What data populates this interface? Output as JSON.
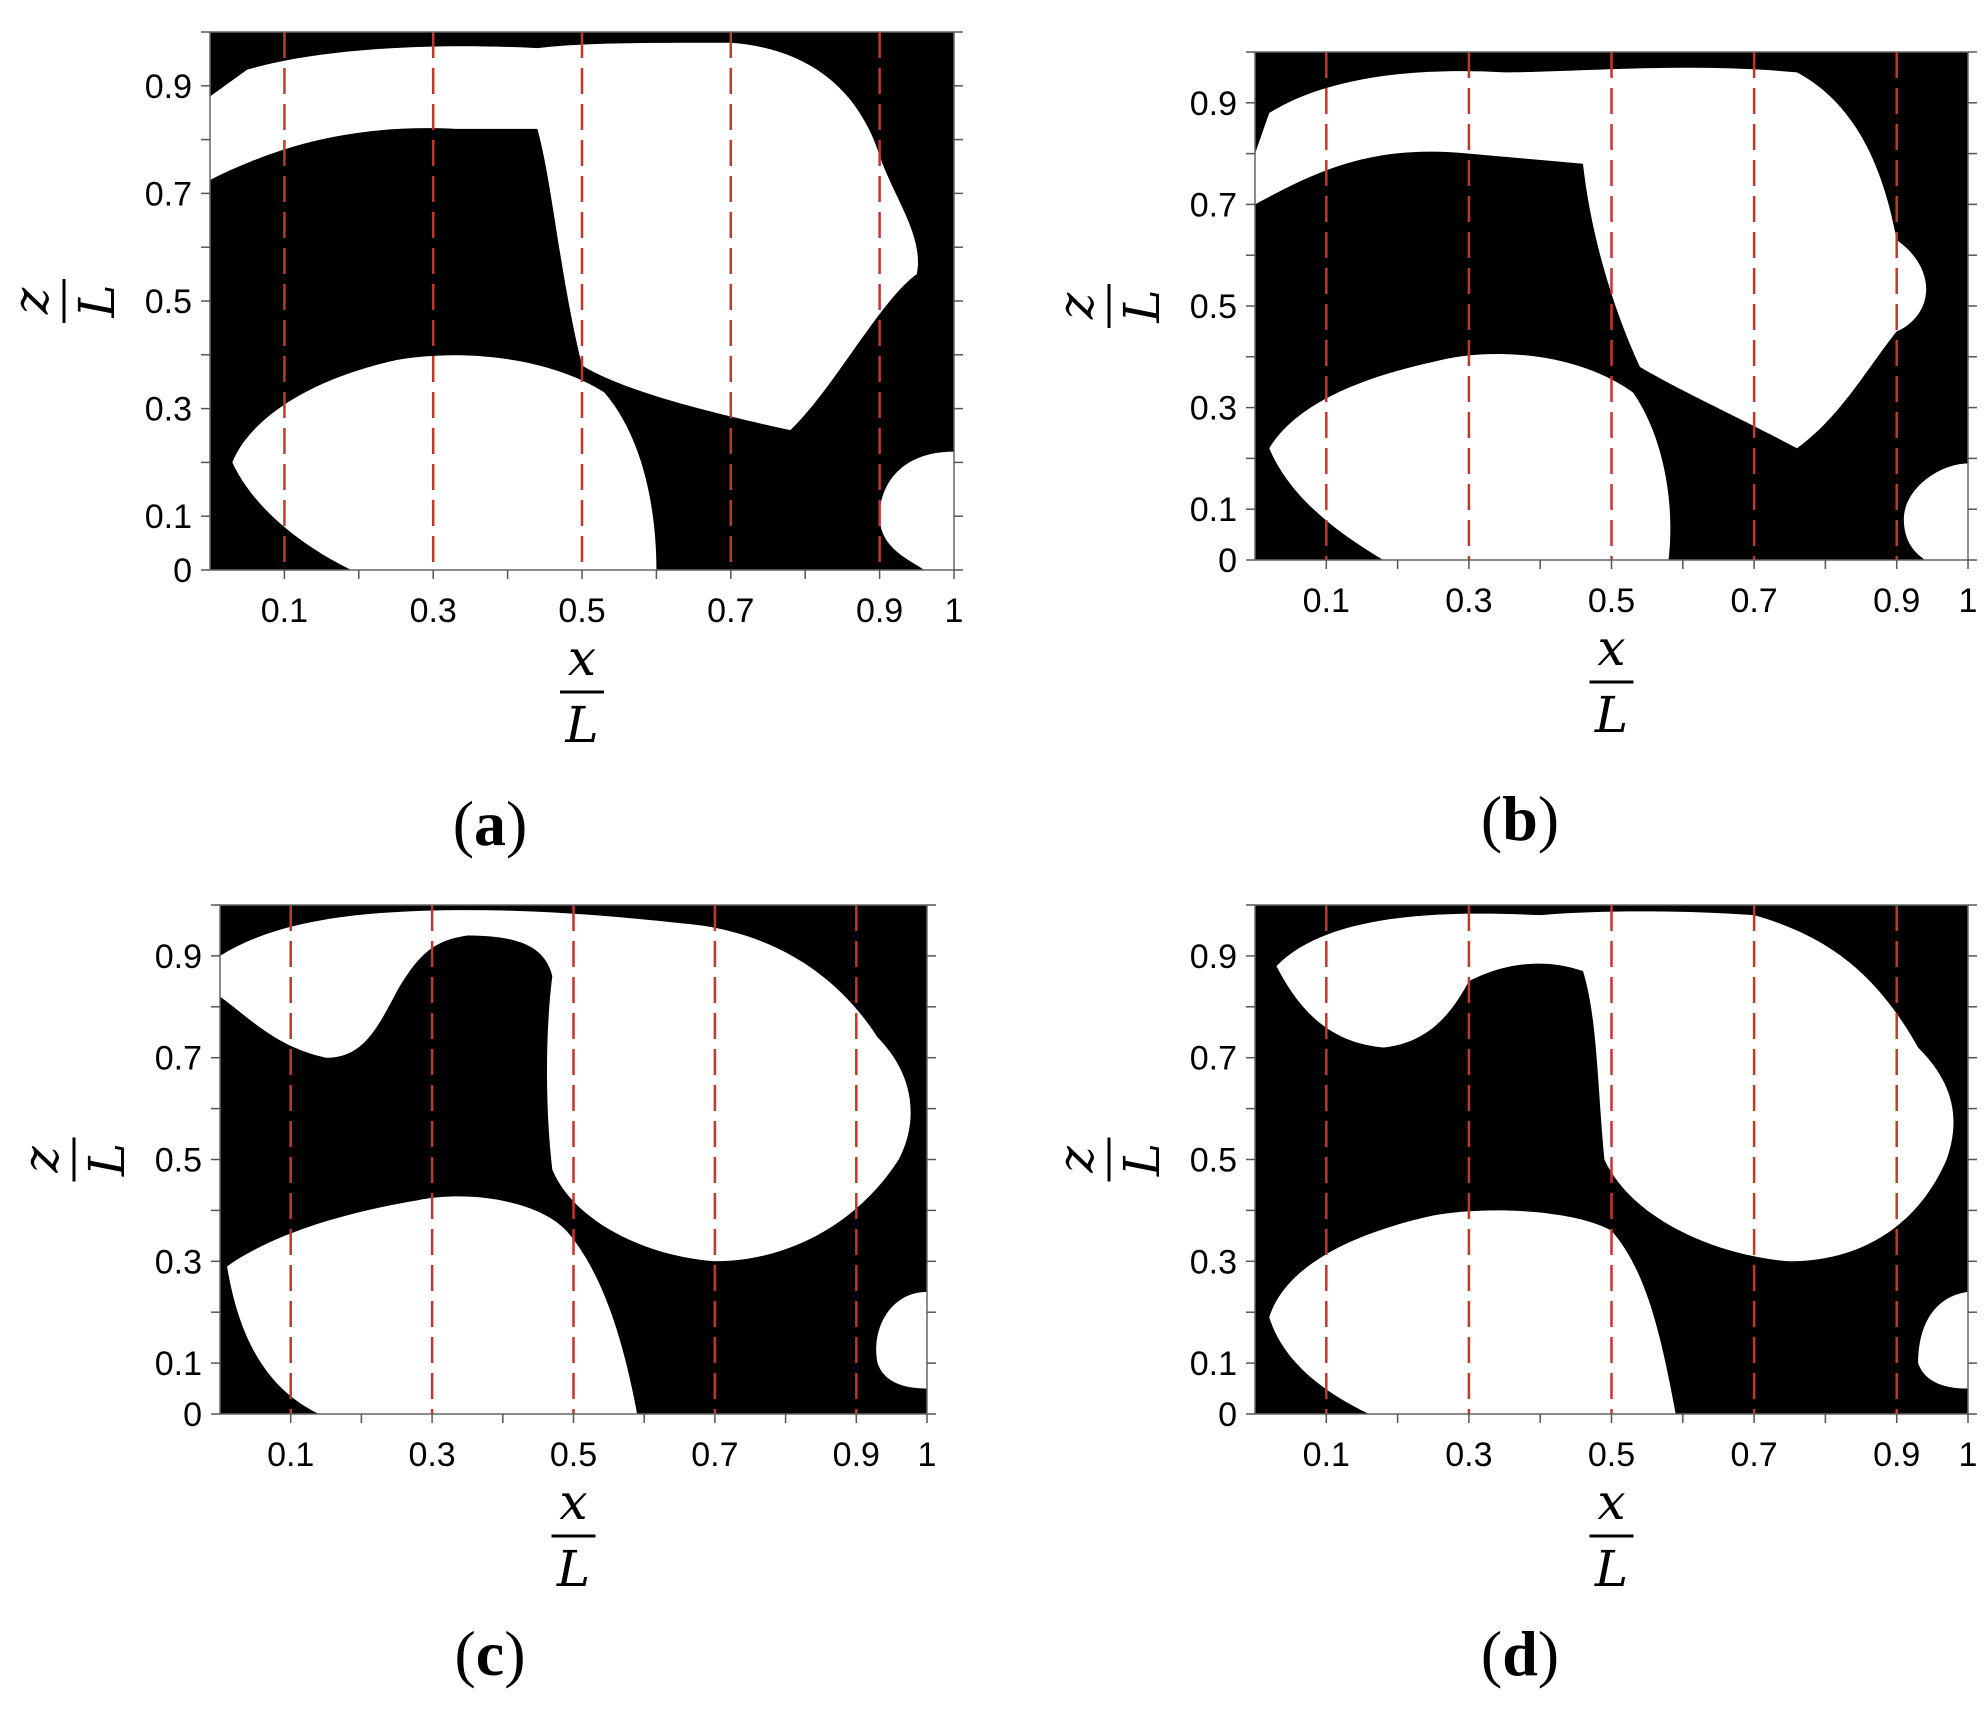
{
  "figure": {
    "panels": [
      {
        "id": "a",
        "label": "(a)",
        "label_letter": "a",
        "open": "(",
        "close": ")"
      },
      {
        "id": "b",
        "label": "(b)",
        "label_letter": "b",
        "open": "(",
        "close": ")"
      },
      {
        "id": "c",
        "label": "(c)",
        "label_letter": "c",
        "open": "(",
        "close": ")"
      },
      {
        "id": "d",
        "label": "(d)",
        "label_letter": "d",
        "open": "(",
        "close": ")"
      }
    ],
    "x_axis": {
      "numerator": "x",
      "denominator": "L",
      "tick_values": [
        0.1,
        0.3,
        0.5,
        0.7,
        0.9,
        1
      ],
      "tick_labels": [
        "0.1",
        "0.3",
        "0.5",
        "0.7",
        "0.9",
        "1"
      ],
      "minor_ticks": [
        0.2,
        0.4,
        0.6,
        0.8
      ]
    },
    "y_axis": {
      "numerator": "z",
      "denominator": "L",
      "tick_values": [
        0,
        0.1,
        0.3,
        0.5,
        0.7,
        0.9
      ],
      "tick_labels": [
        "0",
        "0.1",
        "0.3",
        "0.5",
        "0.7",
        "0.9"
      ],
      "minor_ticks": [
        0.2,
        0.4,
        0.6,
        0.8,
        1.0
      ]
    },
    "dashed_lines_x": [
      0.1,
      0.3,
      0.5,
      0.7,
      0.9
    ],
    "colors": {
      "solid": "#000000",
      "void": "#ffffff",
      "dash_on_black": "#c0392b",
      "dash_on_white": "#f5a3a3"
    }
  }
}
